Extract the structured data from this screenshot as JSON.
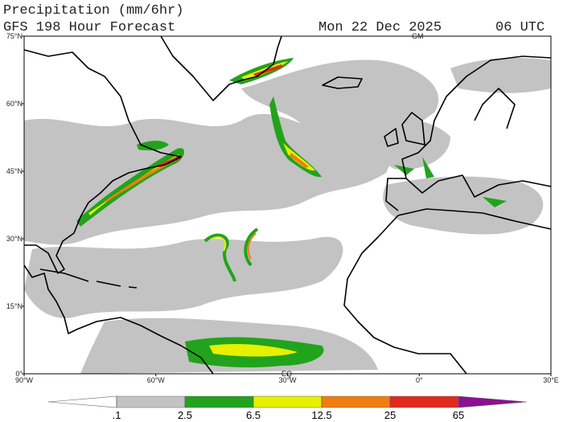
{
  "header": {
    "title": "Precipitation (mm/6hr)",
    "subtitle": "GFS 198 Hour Forecast",
    "date": "Mon 22 Dec 2025",
    "time": "06 UTC"
  },
  "map": {
    "lat_ticks": [
      {
        "value": 75,
        "label": "75°N"
      },
      {
        "value": 60,
        "label": "60°N"
      },
      {
        "value": 45,
        "label": "45°N"
      },
      {
        "value": 30,
        "label": "30°N"
      },
      {
        "value": 15,
        "label": "15°N"
      },
      {
        "value": 0,
        "label": "0°"
      }
    ],
    "lon_ticks": [
      {
        "value": -90,
        "label": "90°W"
      },
      {
        "value": -60,
        "label": "60°W"
      },
      {
        "value": -30,
        "label": "30°W"
      },
      {
        "value": 0,
        "label": "0°"
      },
      {
        "value": 30,
        "label": "30°E"
      }
    ],
    "annotations": [
      "GM",
      "EQ"
    ]
  },
  "colorbar": {
    "levels": [
      {
        "value": 0.1,
        "label": ".1"
      },
      2.5,
      6.5,
      12.5,
      25,
      65
    ],
    "colors": [
      "#ffffff",
      "#c3c3c3",
      "#22a31c",
      "#e6f000",
      "#f07d10",
      "#e3281e",
      "#8c1090"
    ]
  }
}
